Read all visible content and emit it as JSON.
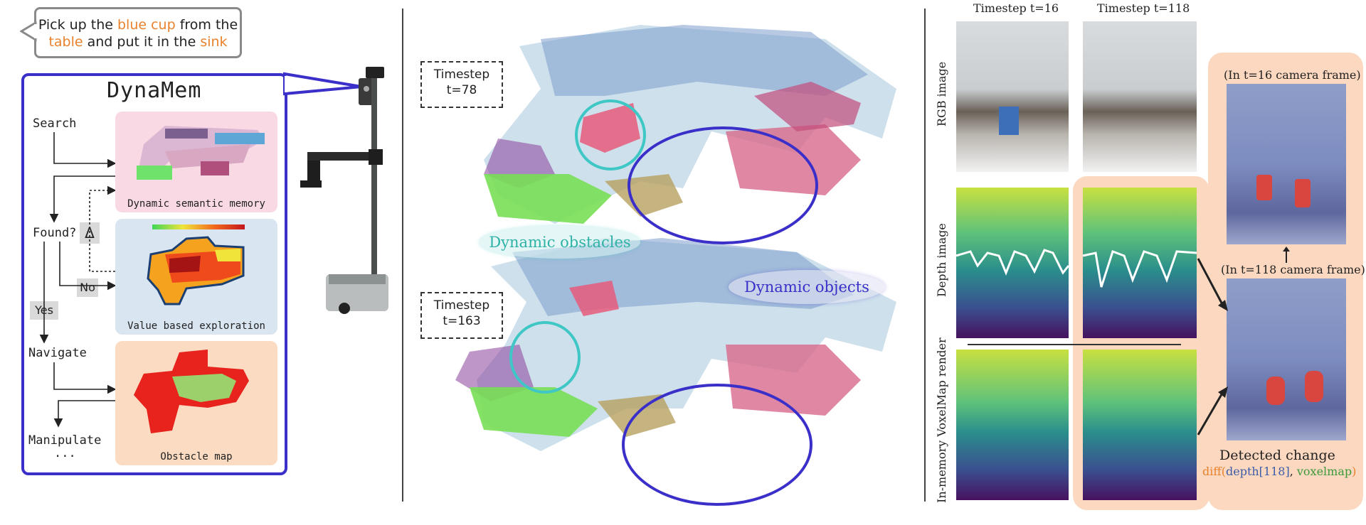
{
  "instruction": {
    "part1": "Pick up the ",
    "obj": "blue cup",
    "part2": " from the",
    "loc1": "table",
    "part3": " and put it in the ",
    "loc2": "sink"
  },
  "dynamem": {
    "title": "DynaMem",
    "flow": {
      "search": "Search",
      "found": "Found?",
      "no": "No",
      "yes": "Yes",
      "navigate": "Navigate",
      "manipulate": "Manipulate",
      "ellipsis": "...",
      "delta": "Δ"
    },
    "cards": {
      "memory": "Dynamic semantic memory",
      "exploration": "Value based exploration",
      "obstacle": "Obstacle map"
    }
  },
  "middle": {
    "t1_label": "Timestep",
    "t1_value": "t=78",
    "t2_label": "Timestep",
    "t2_value": "t=163",
    "obstacles": "Dynamic obstacles",
    "objects": "Dynamic objects"
  },
  "right": {
    "col1": "Timestep t=16",
    "col2": "Timestep t=118",
    "row_rgb": "RGB image",
    "row_depth": "Depth image",
    "row_voxel": "In-memory VoxelMap render",
    "frame16": "(In t=16 camera frame)",
    "frame118": "(In t=118 camera frame)",
    "detected": "Detected change",
    "diff_fn": "diff",
    "diff_a": "depth[118]",
    "diff_b": "voxelmap",
    "diff_comma": ", ",
    "paren_open": "(",
    "paren_close": ")"
  },
  "colors": {
    "accent_orange": "#e8822c",
    "dynamem_border": "#3a2fc8",
    "cyan": "#3ec7c4",
    "panel_peach": "#fbd8bf"
  }
}
